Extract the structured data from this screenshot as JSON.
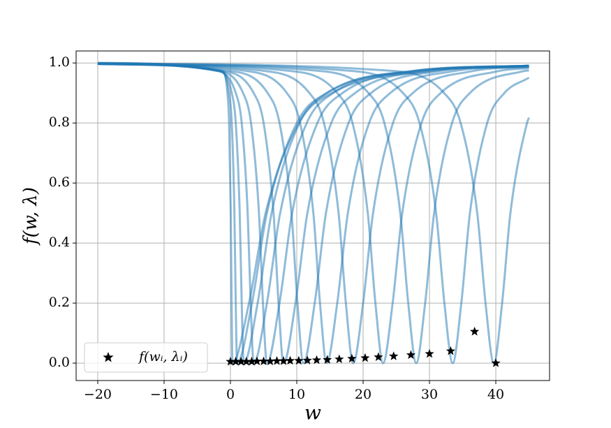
{
  "chart_data": {
    "type": "line",
    "xlabel": "w",
    "ylabel": "f(w, λ)",
    "xlim": [
      -23.26,
      48.1
    ],
    "ylim": [
      -0.058,
      1.04
    ],
    "xticks": [
      {
        "value": -20,
        "label": "−20"
      },
      {
        "value": -10,
        "label": "−10"
      },
      0,
      10,
      20,
      30,
      40
    ],
    "yticks": [
      {
        "value": 0,
        "label": "0.0"
      },
      0.2,
      0.4,
      0.6,
      0.8,
      {
        "value": 1,
        "label": "1.0"
      }
    ],
    "grid": true,
    "legend": "lower left",
    "series": [
      {
        "color": "#1f77b4",
        "x": [
          -20,
          -1.2,
          -0.45,
          -0.2,
          0.05,
          0.18,
          0.3,
          2.8,
          5.3,
          10.3,
          15.3,
          30.3,
          45
        ],
        "values": [
          1.0,
          0.973,
          0.9,
          0.8,
          0.5,
          0.2,
          0,
          0.2,
          0.5,
          0.8,
          0.9,
          0.973,
          0.988
        ]
      },
      {
        "color": "#1f77b4",
        "x": [
          -20,
          -1.4,
          -0.2,
          0.2,
          0.6,
          0.8,
          1,
          3.25,
          5.5,
          10,
          14.5,
          28,
          45
        ],
        "values": [
          1.0,
          0.973,
          0.9,
          0.8,
          0.5,
          0.2,
          0,
          0.2,
          0.5,
          0.8,
          0.9,
          0.973,
          0.99
        ]
      },
      {
        "color": "#1f77b4",
        "x": [
          -20,
          -1.6,
          0.2,
          0.8,
          1.4,
          1.7,
          2,
          4.1,
          6.2,
          10.4,
          14.6,
          27.2,
          45
        ],
        "values": [
          0.999,
          0.973,
          0.9,
          0.8,
          0.5,
          0.2,
          0,
          0.2,
          0.5,
          0.8,
          0.9,
          0.973,
          0.991
        ]
      },
      {
        "color": "#1f77b4",
        "x": [
          -20,
          -1.9,
          0.8,
          1.7,
          2.6,
          3.05,
          3.5,
          5.5,
          7.5,
          11.5,
          15.5,
          27.5,
          45
        ],
        "values": [
          0.999,
          0.973,
          0.9,
          0.8,
          0.5,
          0.2,
          0,
          0.2,
          0.5,
          0.8,
          0.9,
          0.973,
          0.991
        ]
      },
      {
        "color": "#1f77b4",
        "x": [
          -20,
          -1.7,
          1.9,
          3.1,
          4.3,
          4.9,
          5.5,
          7.4,
          9.3,
          13.1,
          16.9,
          28.3,
          45
        ],
        "values": [
          0.998,
          0.973,
          0.9,
          0.8,
          0.5,
          0.2,
          0,
          0.2,
          0.5,
          0.8,
          0.9,
          0.973,
          0.991
        ]
      },
      {
        "color": "#1f77b4",
        "x": [
          -20,
          -1,
          3.5,
          5,
          6.5,
          7.25,
          8,
          9.8,
          11.6,
          15.2,
          18.8,
          29.6,
          45
        ],
        "values": [
          0.997,
          0.973,
          0.9,
          0.8,
          0.5,
          0.2,
          0,
          0.2,
          0.5,
          0.8,
          0.9,
          0.973,
          0.991
        ]
      },
      {
        "color": "#1f77b4",
        "x": [
          -20,
          0.2,
          5.6,
          7.4,
          9.2,
          10.1,
          11,
          12.7,
          14.4,
          17.8,
          21.2,
          31.4,
          45
        ],
        "values": [
          0.997,
          0.973,
          0.9,
          0.8,
          0.5,
          0.2,
          0,
          0.2,
          0.5,
          0.8,
          0.9,
          0.973,
          0.99
        ]
      },
      {
        "color": "#1f77b4",
        "x": [
          -20,
          2.5,
          8.5,
          10.5,
          12.5,
          13.5,
          14.5,
          16.1,
          17.7,
          20.9,
          24.1,
          33.7,
          45
        ],
        "values": [
          0.997,
          0.973,
          0.9,
          0.8,
          0.5,
          0.2,
          0,
          0.2,
          0.5,
          0.8,
          0.9,
          0.973,
          0.989
        ]
      },
      {
        "color": "#1f77b4",
        "x": [
          -20,
          5.3,
          11.9,
          14.1,
          16.3,
          17.4,
          18.5,
          20,
          21.5,
          24.5,
          27.5,
          36.5,
          45
        ],
        "values": [
          0.997,
          0.973,
          0.9,
          0.8,
          0.5,
          0.2,
          0,
          0.2,
          0.5,
          0.8,
          0.9,
          0.973,
          0.987
        ]
      },
      {
        "color": "#1f77b4",
        "x": [
          -20,
          9.2,
          16.1,
          18.4,
          20.7,
          21.85,
          23,
          24.45,
          25.9,
          28.8,
          31.7,
          40.4,
          45
        ],
        "values": [
          0.997,
          0.973,
          0.9,
          0.8,
          0.5,
          0.2,
          0,
          0.2,
          0.5,
          0.8,
          0.9,
          0.973,
          0.983
        ]
      },
      {
        "color": "#1f77b4",
        "x": [
          -20,
          13.6,
          20.8,
          23.2,
          25.6,
          26.8,
          28,
          29.35,
          30.7,
          33.4,
          36.1,
          44.2,
          45
        ],
        "values": [
          0.997,
          0.973,
          0.9,
          0.8,
          0.5,
          0.2,
          0,
          0.2,
          0.5,
          0.8,
          0.9,
          0.973,
          0.975
        ]
      },
      {
        "color": "#1f77b4",
        "x": [
          -20,
          18.5,
          26,
          28.5,
          31,
          32.25,
          33.5,
          34.8,
          36.1,
          38.7,
          41.3,
          45
        ],
        "values": [
          0.998,
          0.973,
          0.9,
          0.8,
          0.5,
          0.2,
          0,
          0.2,
          0.5,
          0.8,
          0.9,
          0.951
        ]
      },
      {
        "color": "#1f77b4",
        "x": [
          -20,
          24.7,
          32.2,
          34.7,
          37.2,
          38.45,
          39.7,
          40.95,
          42.2,
          44.7,
          45
        ],
        "values": [
          0.998,
          0.973,
          0.9,
          0.8,
          0.5,
          0.2,
          0,
          0.2,
          0.5,
          0.8,
          0.818
        ]
      }
    ],
    "scatter": {
      "name": "f(wᵢ, λᵢ)",
      "color": "#000000",
      "marker": "star",
      "x": [
        0,
        0.8,
        1.6,
        2.4,
        3.2,
        4,
        5,
        6,
        7,
        8,
        9,
        10.3,
        11.6,
        13,
        14.6,
        16.4,
        18.3,
        20.3,
        22.3,
        24.6,
        27.2,
        30,
        33.2,
        36.8,
        40
      ],
      "values": [
        0.005,
        0.005,
        0.005,
        0.005,
        0.005,
        0.006,
        0.006,
        0.006,
        0.007,
        0.007,
        0.008,
        0.008,
        0.009,
        0.01,
        0.011,
        0.013,
        0.015,
        0.017,
        0.02,
        0.023,
        0.027,
        0.031,
        0.04,
        0.105,
        0.0
      ]
    }
  }
}
